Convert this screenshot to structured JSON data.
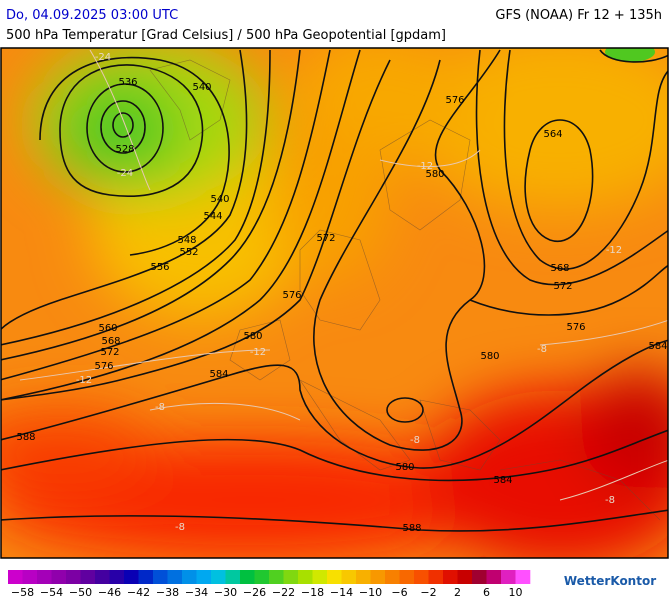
{
  "header": {
    "datetime": "Do, 04.09.2025 03:00 UTC",
    "model": "GFS (NOAA) Fr 12 + 135h",
    "subtitle": "500 hPa Temperatur [Grad Celsius] / 500 hPa Geopotential [gpdam]"
  },
  "map": {
    "geopotential_labels": [
      "536",
      "540",
      "528",
      "540",
      "544",
      "548",
      "552",
      "556",
      "560",
      "568",
      "572",
      "576",
      "580",
      "584",
      "588",
      "572",
      "576",
      "580",
      "576",
      "564",
      "568",
      "572",
      "576",
      "580",
      "584",
      "580",
      "584",
      "588"
    ],
    "temperature_labels": [
      "-24",
      "-24",
      "-12",
      "-12",
      "-12",
      "-12",
      "-8",
      "-8",
      "-8",
      "-8",
      "-8"
    ]
  },
  "colorbar": {
    "colors": [
      "#cc00cc",
      "#b800c4",
      "#a400b8",
      "#9000ac",
      "#7c00a4",
      "#6000a0",
      "#4400a0",
      "#2800a8",
      "#0a00b4",
      "#0028c8",
      "#0050d8",
      "#0070e0",
      "#0090e8",
      "#00a8f0",
      "#00c0e0",
      "#00c8a0",
      "#00c040",
      "#20c830",
      "#50d020",
      "#80d810",
      "#a8e000",
      "#d0e800",
      "#f8e000",
      "#f8c800",
      "#f8b000",
      "#f89800",
      "#f88000",
      "#f86800",
      "#f85000",
      "#f03000",
      "#e01000",
      "#c80000",
      "#a00030",
      "#c00070",
      "#e020c0",
      "#ff50ff"
    ],
    "labels": [
      "−58",
      "−54",
      "−50",
      "−46",
      "−42",
      "−38",
      "−34",
      "−30",
      "−26",
      "−22",
      "−18",
      "−14",
      "−10",
      "−6",
      "−2",
      "2",
      "6",
      "10"
    ]
  },
  "logo": "WetterKontor"
}
